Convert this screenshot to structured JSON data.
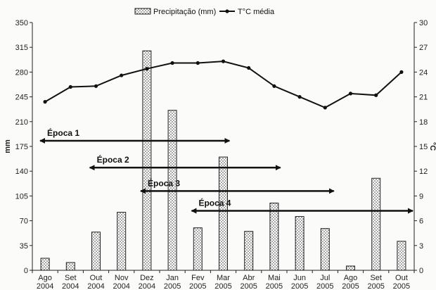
{
  "chart_data": {
    "type": "bar+line",
    "categories": [
      [
        "Ago",
        "2004"
      ],
      [
        "Set",
        "2004"
      ],
      [
        "Out",
        "2004"
      ],
      [
        "Nov",
        "2004"
      ],
      [
        "Dez",
        "2004"
      ],
      [
        "Jan",
        "2005"
      ],
      [
        "Fev",
        "2005"
      ],
      [
        "Mar",
        "2005"
      ],
      [
        "Abr",
        "2005"
      ],
      [
        "Mai",
        "2005"
      ],
      [
        "Jun",
        "2005"
      ],
      [
        "Jul",
        "2005"
      ],
      [
        "Ago",
        "2005"
      ],
      [
        "Set",
        "2005"
      ],
      [
        "Out",
        "2005"
      ]
    ],
    "series": [
      {
        "name": "Precipitação (mm)",
        "kind": "bar",
        "axis": "left",
        "values": [
          17,
          11,
          54,
          82,
          310,
          226,
          60,
          160,
          55,
          95,
          76,
          59,
          6,
          130,
          41
        ]
      },
      {
        "name": "T°C média",
        "kind": "line",
        "axis": "right",
        "values": [
          20.4,
          22.2,
          22.3,
          23.6,
          24.4,
          25.1,
          25.1,
          25.3,
          24.5,
          22.3,
          21.0,
          19.7,
          21.4,
          21.2,
          24.0
        ]
      }
    ],
    "ylabel": "mm",
    "y2label": "°C",
    "ylim": [
      0,
      350
    ],
    "y2lim": [
      0,
      30
    ],
    "yticks": [
      "0",
      "35",
      "70",
      "105",
      "140",
      "175",
      "210",
      "245",
      "280",
      "315",
      "350"
    ],
    "y2ticks": [
      "0",
      "3",
      "6",
      "9",
      "12",
      "15",
      "18",
      "21",
      "24",
      "27",
      "30"
    ],
    "grid": false,
    "legend_position": "top",
    "annotations": [
      {
        "label": "Época 1",
        "y": 183,
        "from": -0.25,
        "to": 7.3
      },
      {
        "label": "Época 2",
        "y": 145,
        "from": 1.7,
        "to": 9.3
      },
      {
        "label": "Época 3",
        "y": 112,
        "from": 3.7,
        "to": 11.4
      },
      {
        "label": "Época 4",
        "y": 84,
        "from": 5.7,
        "to": 14.5
      }
    ]
  }
}
